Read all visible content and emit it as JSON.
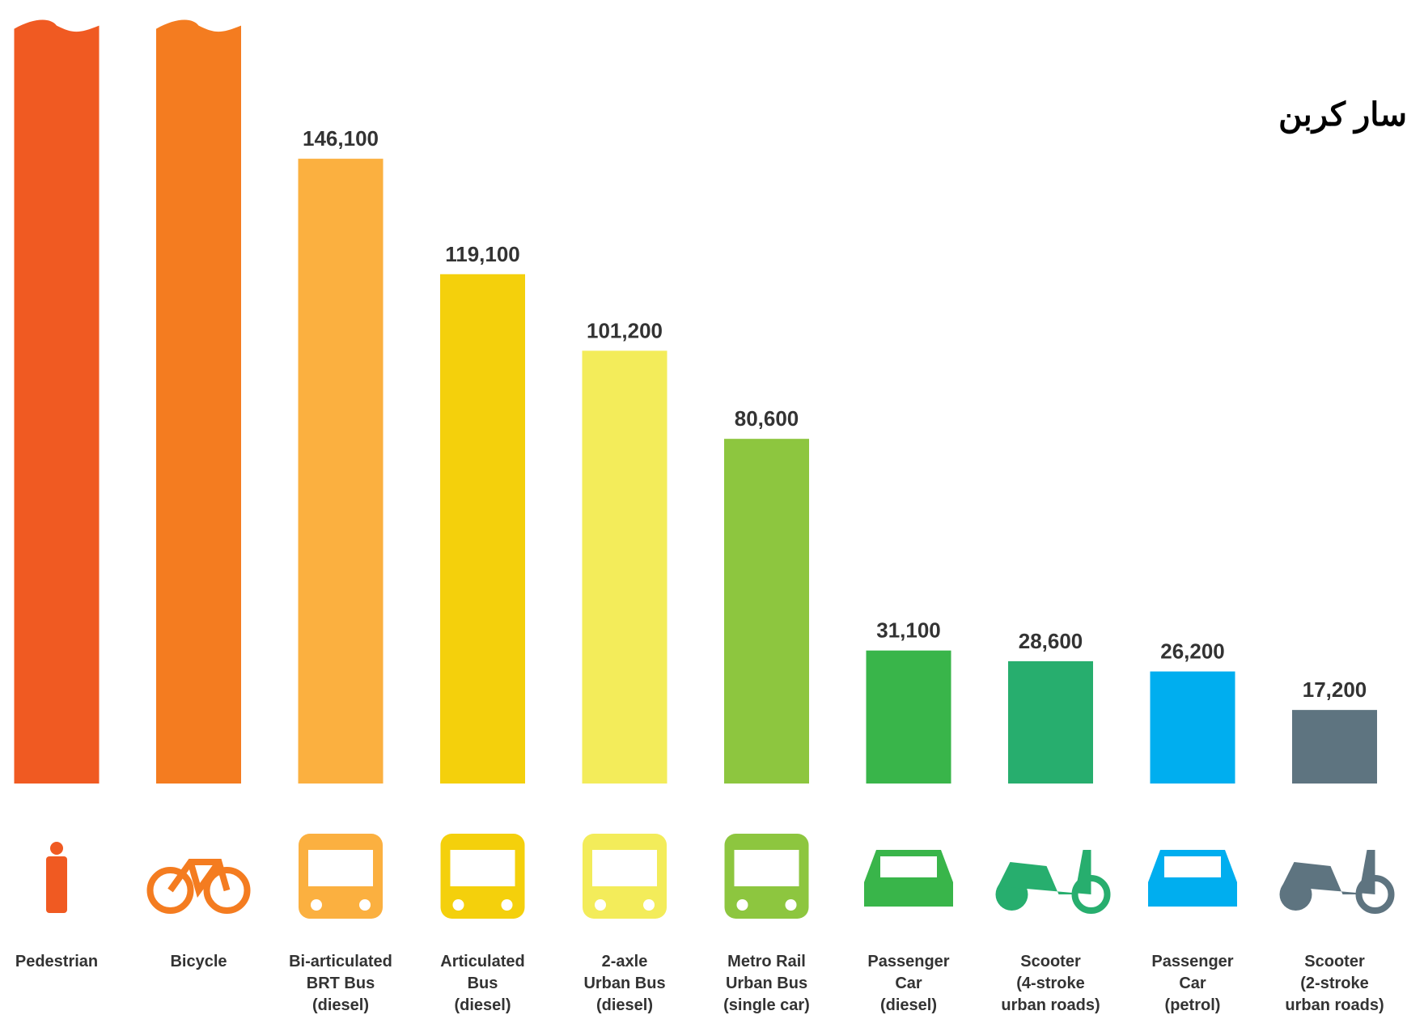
{
  "chart_data": {
    "type": "bar",
    "title": "سار کربن",
    "categories": [
      [
        "Pedestrian"
      ],
      [
        "Bicycle"
      ],
      [
        "Bi-articulated",
        "BRT Bus",
        "(diesel)"
      ],
      [
        "Articulated",
        "Bus",
        "(diesel)"
      ],
      [
        "2-axle",
        "Urban Bus",
        "(diesel)"
      ],
      [
        "Metro Rail",
        "Urban Bus",
        "(single car)"
      ],
      [
        "Passenger",
        "Car",
        "(diesel)"
      ],
      [
        "Scooter",
        "(4-stroke",
        "urban roads)"
      ],
      [
        "Passenger",
        "Car",
        "(petrol)"
      ],
      [
        "Scooter",
        "(2-stroke",
        "urban roads)"
      ]
    ],
    "values": [
      178000,
      178000,
      146100,
      119100,
      101200,
      80600,
      31100,
      28600,
      26200,
      17200
    ],
    "value_labels": [
      null,
      null,
      "146,100",
      "119,100",
      "101,200",
      "80,600",
      "31,100",
      "28,600",
      "26,200",
      "17,200"
    ],
    "colors": [
      "#f05a22",
      "#f47c20",
      "#fbb040",
      "#f4d00c",
      "#f3ec5a",
      "#8dc63f",
      "#39b54a",
      "#27ae6e",
      "#00aeef",
      "#5e7480"
    ],
    "ylim": [
      0,
      180000
    ]
  }
}
